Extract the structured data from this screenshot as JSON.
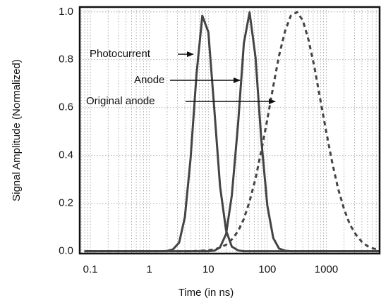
{
  "chart_data": {
    "type": "line",
    "xlabel": "Time (in ns)",
    "ylabel": "Signal Amplitude (Normalized)",
    "xscale": "log",
    "grid": true,
    "xlim": [
      0.066,
      8000
    ],
    "ylim": [
      -0.01,
      1.02
    ],
    "xticks": [
      0.1,
      1,
      10,
      100,
      1000
    ],
    "xminorticks": [
      0.07,
      0.08,
      0.09,
      0.2,
      0.3,
      0.4,
      0.5,
      0.6,
      0.7,
      0.8,
      0.9,
      2,
      3,
      4,
      5,
      6,
      7,
      8,
      9,
      20,
      30,
      40,
      50,
      60,
      70,
      80,
      90,
      200,
      300,
      400,
      500,
      600,
      700,
      800,
      900,
      2000,
      3000,
      4000,
      5000,
      6000,
      7000
    ],
    "yticks": [
      {
        "value": 0,
        "label": "0.0"
      },
      0.2,
      0.4,
      0.6,
      0.8,
      {
        "value": 1,
        "label": "1.0"
      }
    ],
    "x": [
      0.079,
      0.1,
      0.126,
      0.158,
      0.2,
      0.25,
      0.32,
      0.4,
      0.5,
      0.63,
      0.79,
      1,
      1.26,
      1.58,
      2,
      2.5,
      3.2,
      4,
      5,
      6.3,
      7.9,
      10,
      12.6,
      15.8,
      20,
      25,
      32,
      40,
      50,
      63,
      79,
      100,
      126,
      158,
      200,
      250,
      320,
      400,
      500,
      630,
      790,
      1000,
      1260,
      1580,
      2000,
      2500,
      3200,
      4000,
      5000,
      6300,
      7900
    ],
    "series": [
      {
        "name": "Photocurrent",
        "color": "#444444",
        "dashed": false,
        "values": [
          0,
          0,
          0,
          0,
          0,
          0,
          0,
          0,
          0,
          0,
          0,
          0,
          0,
          0,
          0.001,
          0.007,
          0.036,
          0.142,
          0.388,
          0.739,
          0.984,
          0.916,
          0.596,
          0.271,
          0.086,
          0.019,
          0.003,
          0,
          0,
          0,
          0,
          0,
          0,
          0,
          0,
          0,
          0,
          0,
          0,
          0,
          0,
          0,
          0,
          0,
          0,
          0,
          0,
          0,
          0,
          0,
          0
        ]
      },
      {
        "name": "Anode",
        "color": "#444444",
        "dashed": false,
        "values": [
          0,
          0,
          0,
          0,
          0,
          0,
          0,
          0,
          0,
          0,
          0,
          0,
          0,
          0,
          0,
          0,
          0,
          0,
          0,
          0,
          0,
          0,
          0.002,
          0.016,
          0.072,
          0.233,
          0.535,
          0.869,
          0.998,
          0.811,
          0.466,
          0.19,
          0.055,
          0.011,
          0.002,
          0,
          0,
          0,
          0,
          0,
          0,
          0,
          0,
          0,
          0,
          0,
          0,
          0,
          0,
          0,
          0
        ]
      },
      {
        "name": "Original anode",
        "color": "#444444",
        "dashed": true,
        "values": [
          0,
          0,
          0,
          0,
          0,
          0,
          0,
          0,
          0,
          0,
          0,
          0,
          0,
          0,
          0,
          0,
          0,
          0,
          0,
          0.001,
          0.002,
          0.004,
          0.007,
          0.015,
          0.027,
          0.049,
          0.084,
          0.135,
          0.208,
          0.303,
          0.419,
          0.551,
          0.689,
          0.817,
          0.92,
          0.984,
          0.999,
          0.964,
          0.882,
          0.768,
          0.634,
          0.497,
          0.37,
          0.262,
          0.176,
          0.112,
          0.068,
          0.039,
          0.021,
          0.011,
          0.006
        ]
      }
    ]
  }
}
